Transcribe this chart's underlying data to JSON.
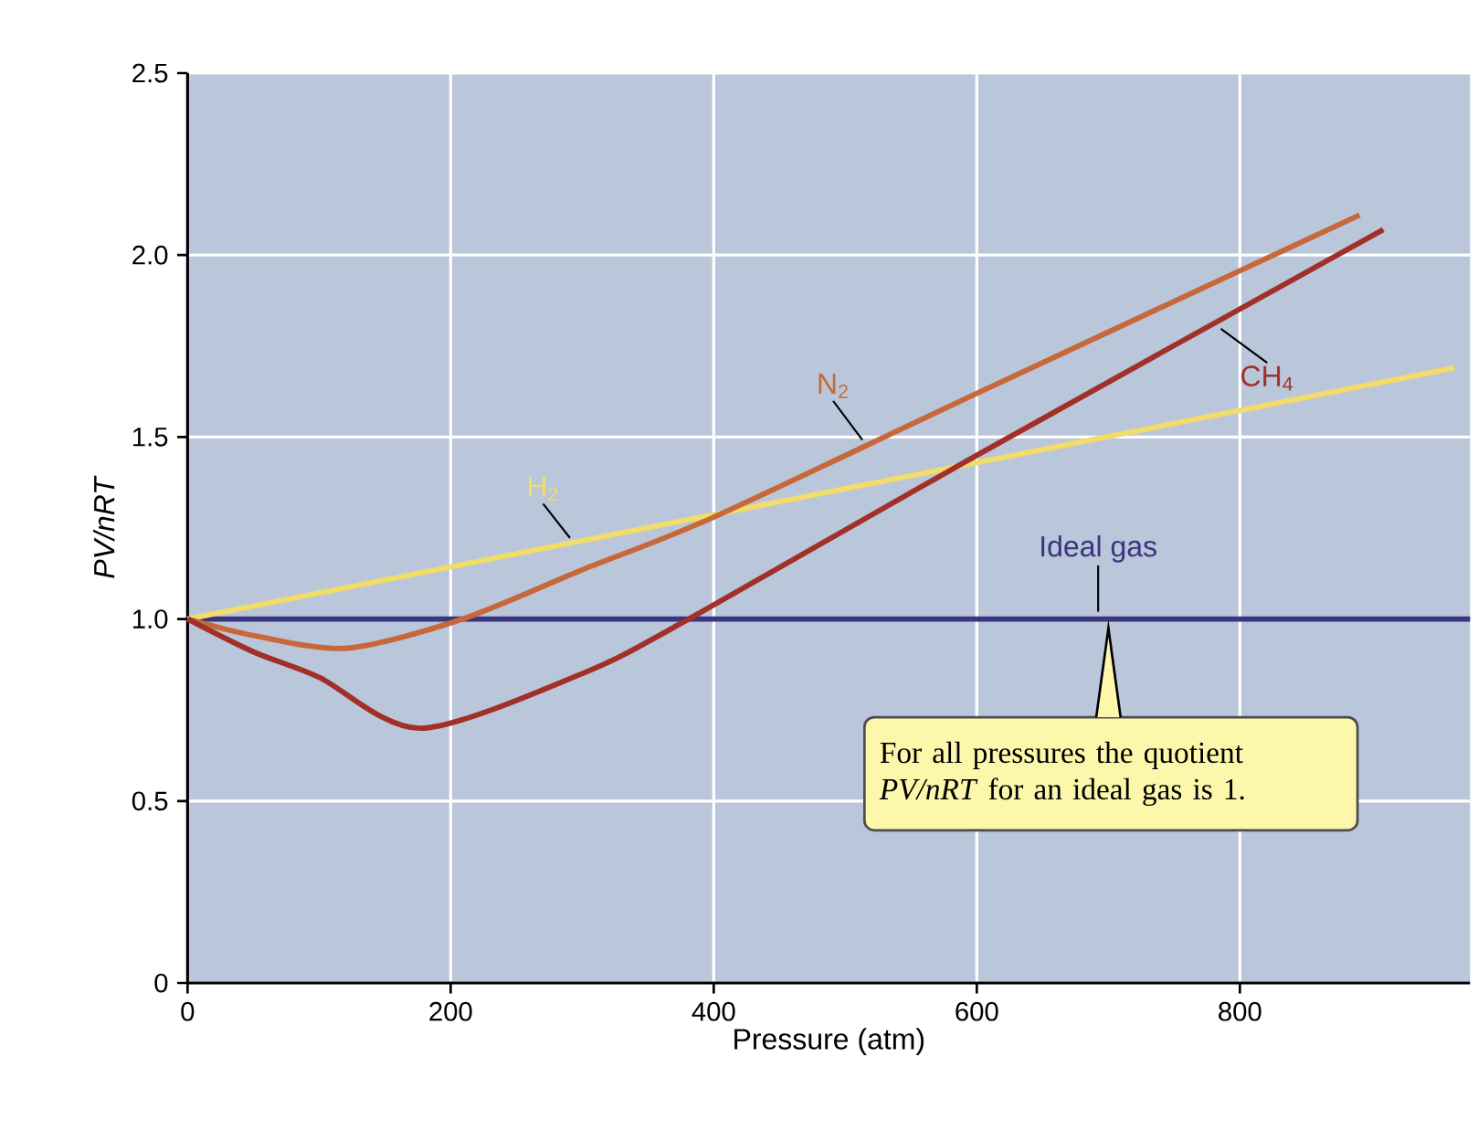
{
  "chart_data": {
    "type": "line",
    "xlabel": "Pressure (atm)",
    "ylabel": "PV/nRT",
    "xlim": [
      0,
      975
    ],
    "ylim": [
      0,
      2.5
    ],
    "xticks": [
      0,
      200,
      400,
      600,
      800
    ],
    "yticks": [
      0,
      {
        "value": 0.5,
        "label": "0.5"
      },
      {
        "value": 1,
        "label": "1.0"
      },
      {
        "value": 1.5,
        "label": "1.5"
      },
      {
        "value": 2,
        "label": "2.0"
      },
      {
        "value": 2.5,
        "label": "2.5"
      }
    ],
    "grid": true,
    "marker": "none",
    "line_style": "solid",
    "series": [
      {
        "name": "Ideal gas",
        "color": "#3a3580",
        "x": [
          0,
          975
        ],
        "values": [
          1.0,
          1.0
        ]
      },
      {
        "name": "H$_{2}$",
        "color": "#f2dc6a",
        "x": [
          0,
          963
        ],
        "values": [
          1.0,
          1.69
        ]
      },
      {
        "name": "N$_{2}$",
        "color": "#c8683a",
        "x": [
          0,
          50,
          121,
          209,
          300,
          400,
          600,
          891
        ],
        "values": [
          1.0,
          0.955,
          0.92,
          1.0,
          1.135,
          1.28,
          1.62,
          2.11
        ]
      },
      {
        "name": "CH$_{4}$",
        "color": "#a03028",
        "x": [
          0,
          50,
          100,
          177,
          300,
          381,
          600,
          909
        ],
        "values": [
          1.0,
          0.91,
          0.84,
          0.7,
          0.85,
          1.0,
          1.45,
          2.07
        ]
      }
    ],
    "annotations": [
      "For all pressures the quotient *PV/nRT* for an ideal gas is 1."
    ]
  }
}
